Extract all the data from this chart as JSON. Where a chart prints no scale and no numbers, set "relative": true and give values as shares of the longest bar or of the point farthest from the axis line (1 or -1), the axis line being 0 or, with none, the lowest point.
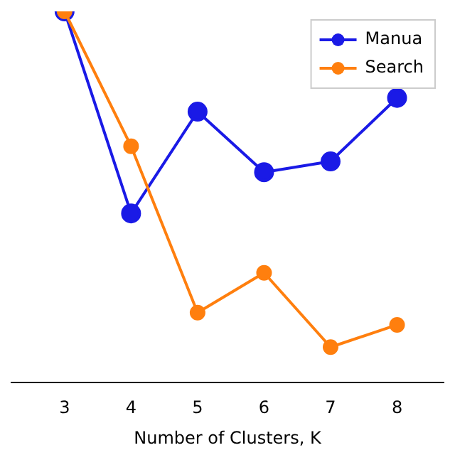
{
  "chart_data": {
    "type": "line",
    "xlabel": "Number of Clusters, K",
    "x": [
      3,
      4,
      5,
      6,
      7,
      8
    ],
    "xlim": [
      2.2,
      8.7
    ],
    "xticks": [
      3,
      4,
      5,
      6,
      7,
      8
    ],
    "relative": true,
    "grid": false,
    "legend": "top right",
    "marker": "circle",
    "line_style": "solid",
    "series": [
      {
        "name": "Manua",
        "color": "#1a1ae6",
        "values": [
          1,
          0.456,
          0.73,
          0.567,
          0.596,
          0.767
        ]
      },
      {
        "name": "Search",
        "color": "#ff7f0e",
        "values": [
          1,
          0.637,
          0.189,
          0.296,
          0.096,
          0.156
        ]
      }
    ]
  }
}
